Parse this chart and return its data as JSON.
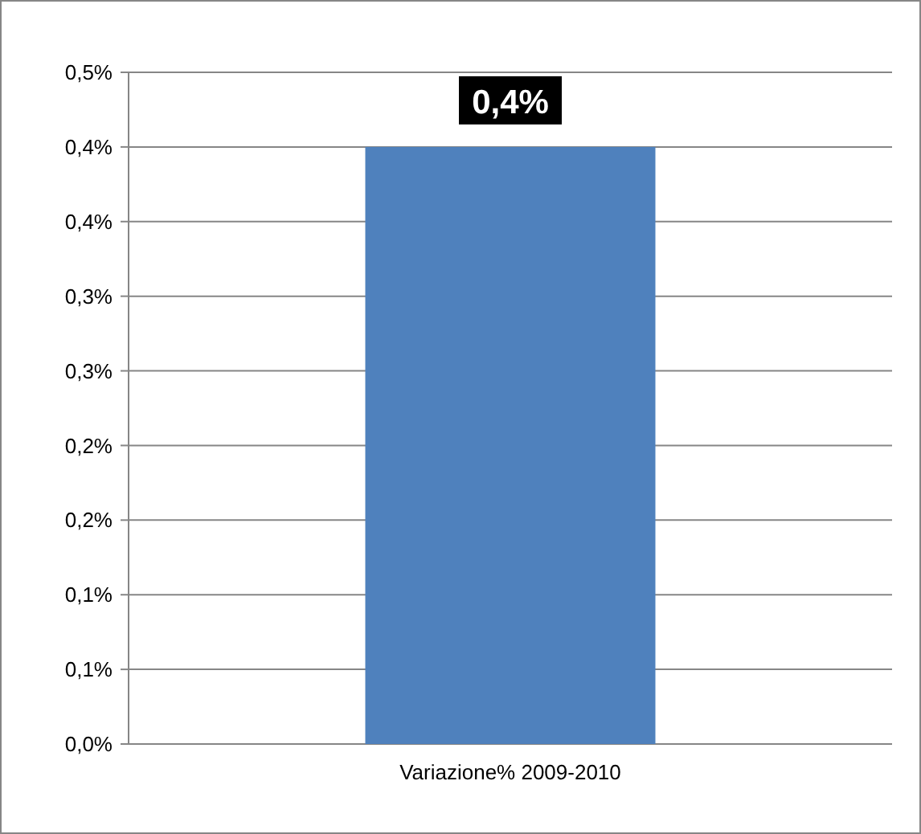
{
  "chart_data": {
    "type": "bar",
    "categories": [
      "Variazione% 2009-2010"
    ],
    "values": [
      0.4
    ],
    "value_labels": [
      "0,4%"
    ],
    "color": "#4f81bd",
    "ylim": [
      0,
      0.45
    ],
    "yticks": [
      {
        "value": 0,
        "label": "0,0%"
      },
      {
        "value": 0.05,
        "label": "0,1%"
      },
      {
        "value": 0.1,
        "label": "0,1%"
      },
      {
        "value": 0.15,
        "label": "0,2%"
      },
      {
        "value": 0.2,
        "label": "0,2%"
      },
      {
        "value": 0.25,
        "label": "0,3%"
      },
      {
        "value": 0.3,
        "label": "0,3%"
      },
      {
        "value": 0.35,
        "label": "0,4%"
      },
      {
        "value": 0.4,
        "label": "0,4%"
      },
      {
        "value": 0.45,
        "label": "0,5%"
      }
    ],
    "grid": "y"
  }
}
